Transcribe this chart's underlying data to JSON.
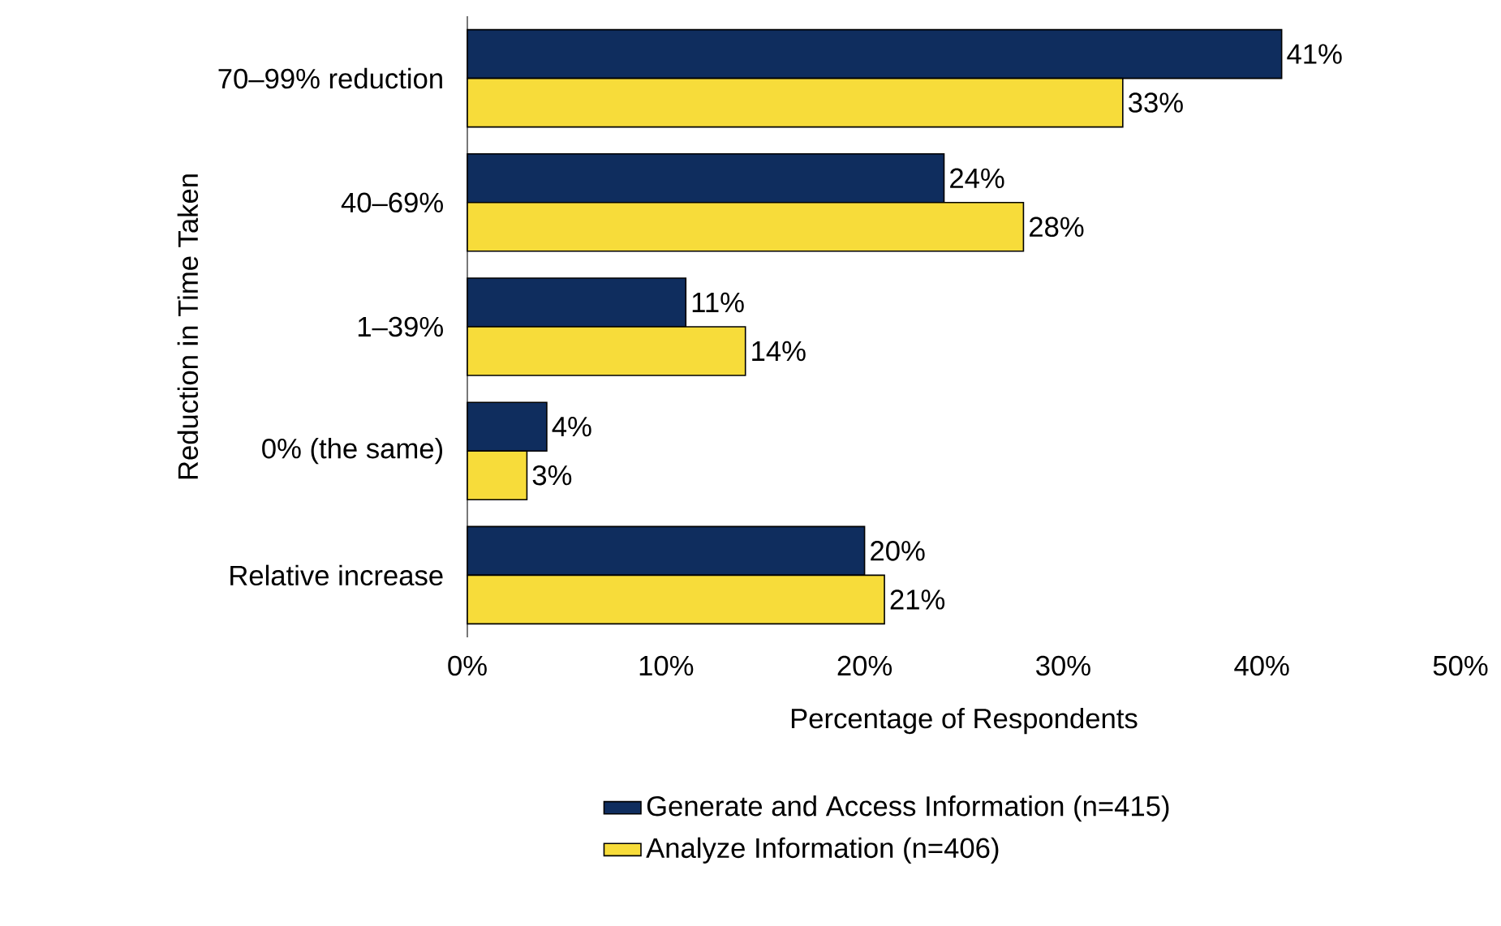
{
  "chart_data": {
    "type": "bar",
    "orientation": "horizontal",
    "xlabel": "Percentage of Respondents",
    "ylabel": "Reduction in Time Taken",
    "categories": [
      "70–99% reduction",
      "40–69%",
      "1–39%",
      "0% (the same)",
      "Relative increase"
    ],
    "series": [
      {
        "name": "Generate and Access Information (n=415)",
        "color": "#0f2d5e",
        "values": [
          41,
          24,
          11,
          4,
          20
        ],
        "value_labels": [
          "41%",
          "24%",
          "11%",
          "4%",
          "20%"
        ]
      },
      {
        "name": "Analyze Information (n=406)",
        "color": "#f7dc3a",
        "values": [
          33,
          28,
          14,
          3,
          21
        ],
        "value_labels": [
          "33%",
          "28%",
          "14%",
          "3%",
          "21%"
        ]
      }
    ],
    "xlim": [
      0,
      50
    ],
    "xticks": [
      {
        "value": 0,
        "label": "0%"
      },
      {
        "value": 10,
        "label": "10%"
      },
      {
        "value": 20,
        "label": "20%"
      },
      {
        "value": 30,
        "label": "30%"
      },
      {
        "value": 40,
        "label": "40%"
      },
      {
        "value": 50,
        "label": "50%"
      }
    ],
    "legend": "bottom",
    "grid": false
  }
}
